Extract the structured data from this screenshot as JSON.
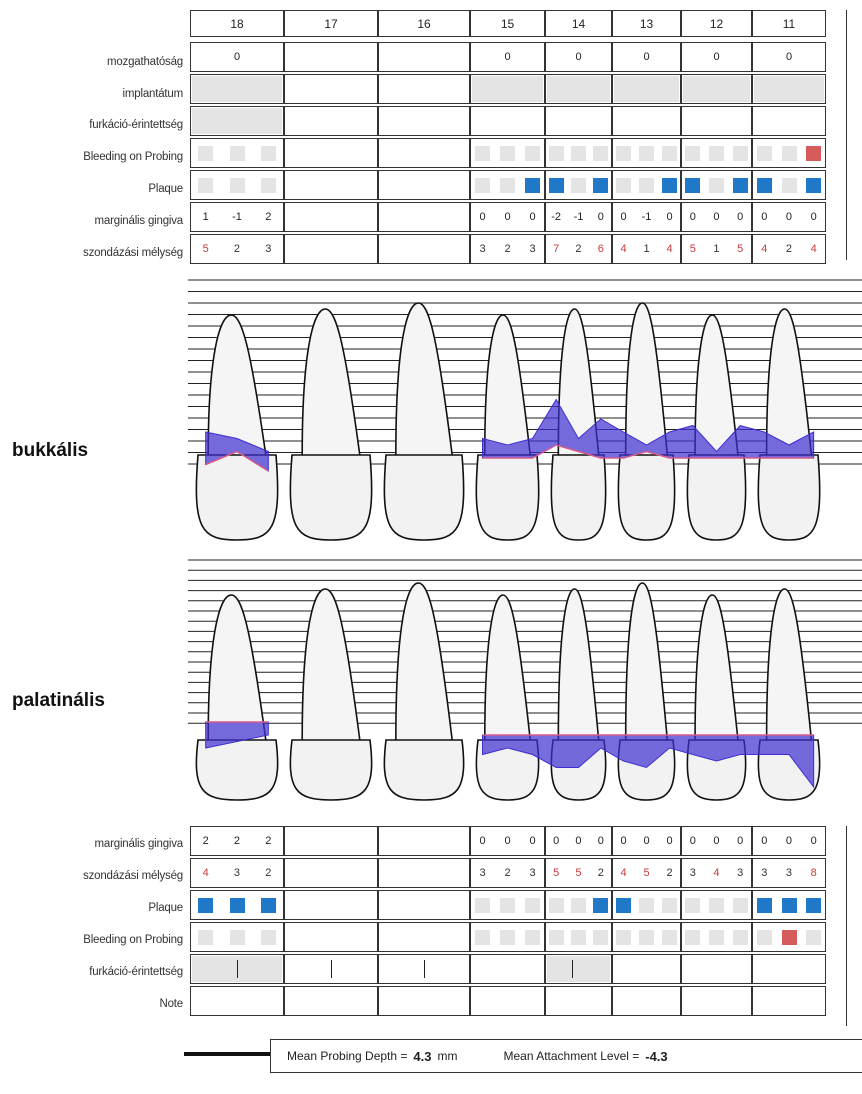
{
  "teeth": [
    "18",
    "17",
    "16",
    "15",
    "14",
    "13",
    "12",
    "11"
  ],
  "upper_labels": {
    "mobility": "mozgathatóság",
    "implant": "implantátum",
    "furcation": "furkáció-érintettség",
    "bop": "Bleeding on Probing",
    "plaque": "Plaque",
    "gm": "marginális gingiva",
    "pd": "szondázási mélység"
  },
  "lower_labels": {
    "gm": "marginális gingiva",
    "pd": "szondázási mélység",
    "plaque": "Plaque",
    "bop": "Bleeding on Probing",
    "furcation": "furkáció-érintettség",
    "note": "Note"
  },
  "sections": {
    "buccal": "bukkális",
    "palatal": "palatinális"
  },
  "mobility": [
    "0",
    "",
    "",
    "0",
    "0",
    "0",
    "0",
    "0"
  ],
  "buccal_gm": [
    [
      "1",
      "-1",
      "2"
    ],
    null,
    null,
    [
      "0",
      "0",
      "0"
    ],
    [
      "-2",
      "-1",
      "0"
    ],
    [
      "0",
      "-1",
      "0"
    ],
    [
      "0",
      "0",
      "0"
    ],
    [
      "0",
      "0",
      "0"
    ]
  ],
  "buccal_pd": [
    [
      "5",
      "2",
      "3"
    ],
    null,
    null,
    [
      "3",
      "2",
      "3"
    ],
    [
      "7",
      "2",
      "6"
    ],
    [
      "4",
      "1",
      "4"
    ],
    [
      "5",
      "1",
      "5"
    ],
    [
      "4",
      "2",
      "4"
    ]
  ],
  "buccal_plaque": [
    [
      0,
      0,
      0
    ],
    null,
    null,
    [
      0,
      0,
      1
    ],
    [
      1,
      0,
      1
    ],
    [
      0,
      0,
      1
    ],
    [
      1,
      0,
      1
    ],
    [
      1,
      0,
      1
    ]
  ],
  "buccal_bop": [
    [
      0,
      0,
      0
    ],
    null,
    null,
    [
      0,
      0,
      0
    ],
    [
      0,
      0,
      0
    ],
    [
      0,
      0,
      0
    ],
    [
      0,
      0,
      0
    ],
    [
      0,
      0,
      1
    ]
  ],
  "palatal_gm": [
    [
      "2",
      "2",
      "2"
    ],
    null,
    null,
    [
      "0",
      "0",
      "0"
    ],
    [
      "0",
      "0",
      "0"
    ],
    [
      "0",
      "0",
      "0"
    ],
    [
      "0",
      "0",
      "0"
    ],
    [
      "0",
      "0",
      "0"
    ]
  ],
  "palatal_pd": [
    [
      "4",
      "3",
      "2"
    ],
    null,
    null,
    [
      "3",
      "2",
      "3"
    ],
    [
      "5",
      "5",
      "2"
    ],
    [
      "4",
      "5",
      "2"
    ],
    [
      "3",
      "4",
      "3"
    ],
    [
      "3",
      "3",
      "8"
    ]
  ],
  "palatal_plaque": [
    [
      1,
      1,
      1
    ],
    null,
    null,
    [
      0,
      0,
      0
    ],
    [
      0,
      0,
      1
    ],
    [
      1,
      0,
      0
    ],
    [
      0,
      0,
      0
    ],
    [
      1,
      1,
      1
    ]
  ],
  "palatal_bop": [
    [
      0,
      0,
      0
    ],
    null,
    null,
    [
      0,
      0,
      0
    ],
    [
      0,
      0,
      0
    ],
    [
      0,
      0,
      0
    ],
    [
      0,
      0,
      0
    ],
    [
      0,
      1,
      0
    ]
  ],
  "summary": {
    "pd_label": "Mean Probing Depth =",
    "pd_value": "4.3",
    "pd_unit": "mm",
    "al_label": "Mean Attachment Level =",
    "al_value": "-4.3"
  },
  "colors": {
    "plaque": "#1f78c8",
    "bleeding": "#d65b5b",
    "pocket_fill": "#3d2fd0",
    "gingiva_line": "#d65b8a"
  },
  "chart_data": {
    "type": "area",
    "categories": [
      "18",
      "17",
      "16",
      "15",
      "14",
      "13",
      "12",
      "11"
    ],
    "series": [],
    "buccal_gingival_margin": [
      [
        1,
        -1,
        2
      ],
      null,
      null,
      [
        0,
        0,
        0
      ],
      [
        -2,
        -1,
        0
      ],
      [
        0,
        -1,
        0
      ],
      [
        0,
        0,
        0
      ],
      [
        0,
        0,
        0
      ]
    ],
    "buccal_probing_depth": [
      [
        5,
        2,
        3
      ],
      null,
      null,
      [
        3,
        2,
        3
      ],
      [
        7,
        2,
        6
      ],
      [
        4,
        1,
        4
      ],
      [
        5,
        1,
        5
      ],
      [
        4,
        2,
        4
      ]
    ],
    "palatal_gingival_margin": [
      [
        2,
        2,
        2
      ],
      null,
      null,
      [
        0,
        0,
        0
      ],
      [
        0,
        0,
        0
      ],
      [
        0,
        0,
        0
      ],
      [
        0,
        0,
        0
      ],
      [
        0,
        0,
        0
      ]
    ],
    "palatal_probing_depth": [
      [
        4,
        3,
        2
      ],
      null,
      null,
      [
        3,
        2,
        3
      ],
      [
        5,
        5,
        2
      ],
      [
        4,
        5,
        2
      ],
      [
        3,
        4,
        3
      ],
      [
        3,
        3,
        8
      ]
    ]
  }
}
